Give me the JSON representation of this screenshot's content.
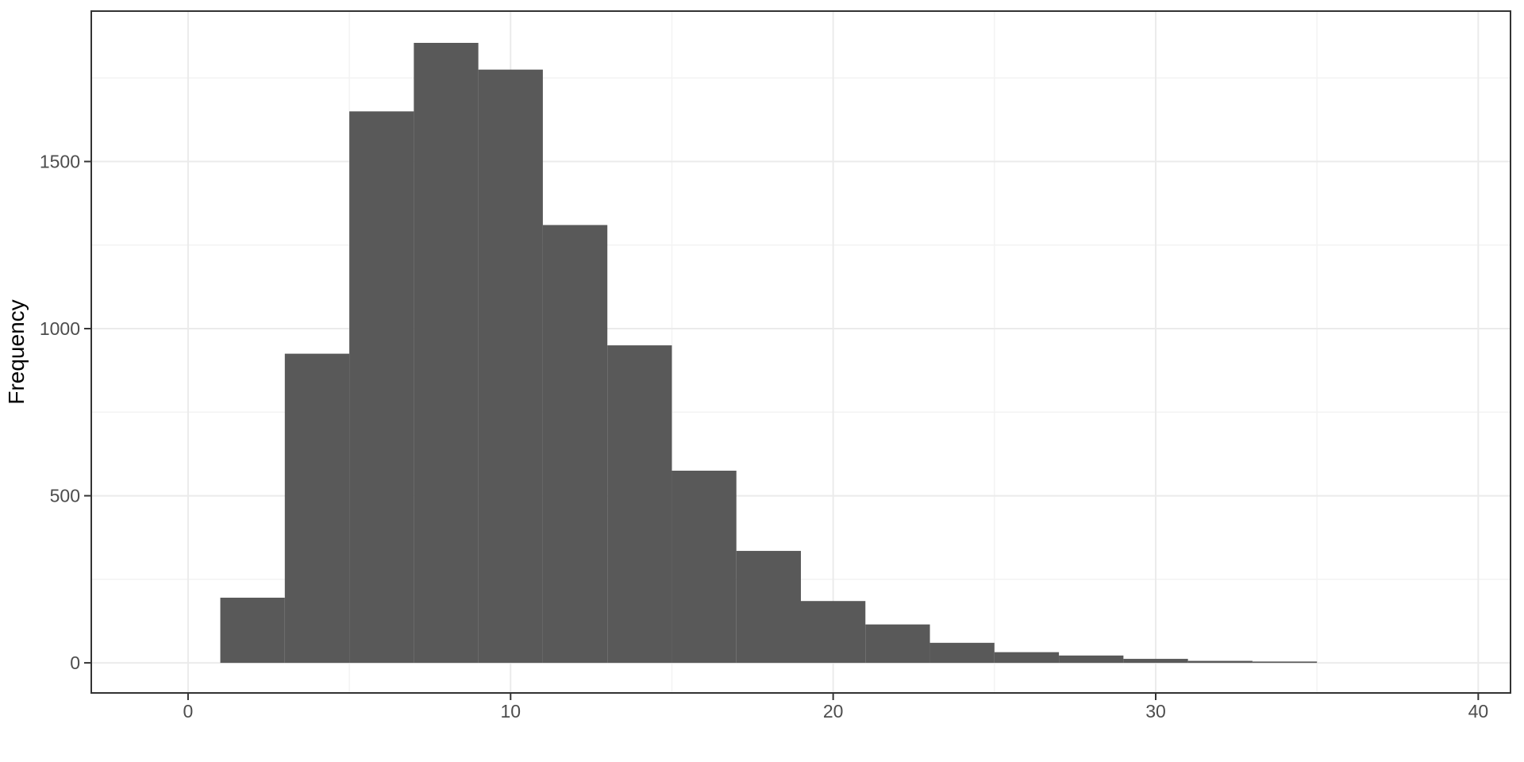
{
  "chart_data": {
    "type": "bar",
    "subtype": "histogram",
    "title": "",
    "xlabel": "",
    "ylabel": "Frequency",
    "bin_width": 2,
    "bin_edges": [
      1,
      3,
      5,
      7,
      9,
      11,
      13,
      15,
      17,
      19,
      21,
      23,
      25,
      27,
      29,
      31,
      33,
      35
    ],
    "counts": [
      195,
      925,
      1650,
      1855,
      1775,
      1310,
      950,
      575,
      335,
      185,
      115,
      60,
      32,
      22,
      12,
      6,
      4
    ],
    "xlim": [
      -3,
      41
    ],
    "ylim": [
      -90,
      1950
    ],
    "x_major_breaks": [
      0,
      10,
      20,
      30,
      40
    ],
    "x_minor_breaks": [
      5,
      15,
      25,
      35
    ],
    "y_major_breaks": [
      0,
      500,
      1000,
      1500
    ],
    "y_minor_breaks": [
      250,
      750,
      1250,
      1750
    ],
    "x_tick_labels": [
      "0",
      "10",
      "20",
      "30",
      "40"
    ],
    "y_tick_labels": [
      "0",
      "500",
      "1000",
      "1500"
    ],
    "grid": true,
    "legend_position": "none",
    "colors": {
      "bar_fill": "#595959",
      "panel_border": "#333333",
      "grid_major": "#EBEBEB",
      "grid_minor": "#F3F3F3",
      "tick_mark": "#333333",
      "tick_label": "#4D4D4D",
      "axis_title": "#000000",
      "background": "#FFFFFF"
    }
  }
}
